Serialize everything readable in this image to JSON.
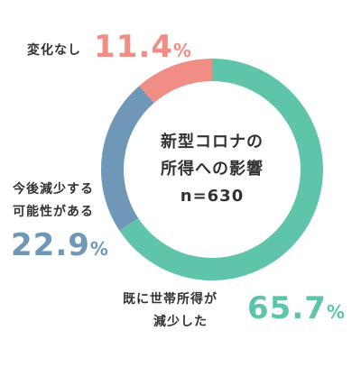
{
  "chart_data": {
    "type": "pie",
    "center_label": [
      "新型コロナの",
      "所得への影響",
      "n=630"
    ],
    "slices": [
      {
        "label_lines": [
          "既に世帯所得が",
          "減少した"
        ],
        "value": 65.7,
        "value_text": "65.7",
        "color": "#5ec5ab"
      },
      {
        "label_lines": [
          "今後減少する",
          "可能性がある"
        ],
        "value": 22.9,
        "value_text": "22.9",
        "color": "#6f98b8"
      },
      {
        "label_lines": [
          "変化なし"
        ],
        "value": 11.4,
        "value_text": "11.4",
        "color": "#f08d85"
      }
    ],
    "percent_sign": "%"
  }
}
